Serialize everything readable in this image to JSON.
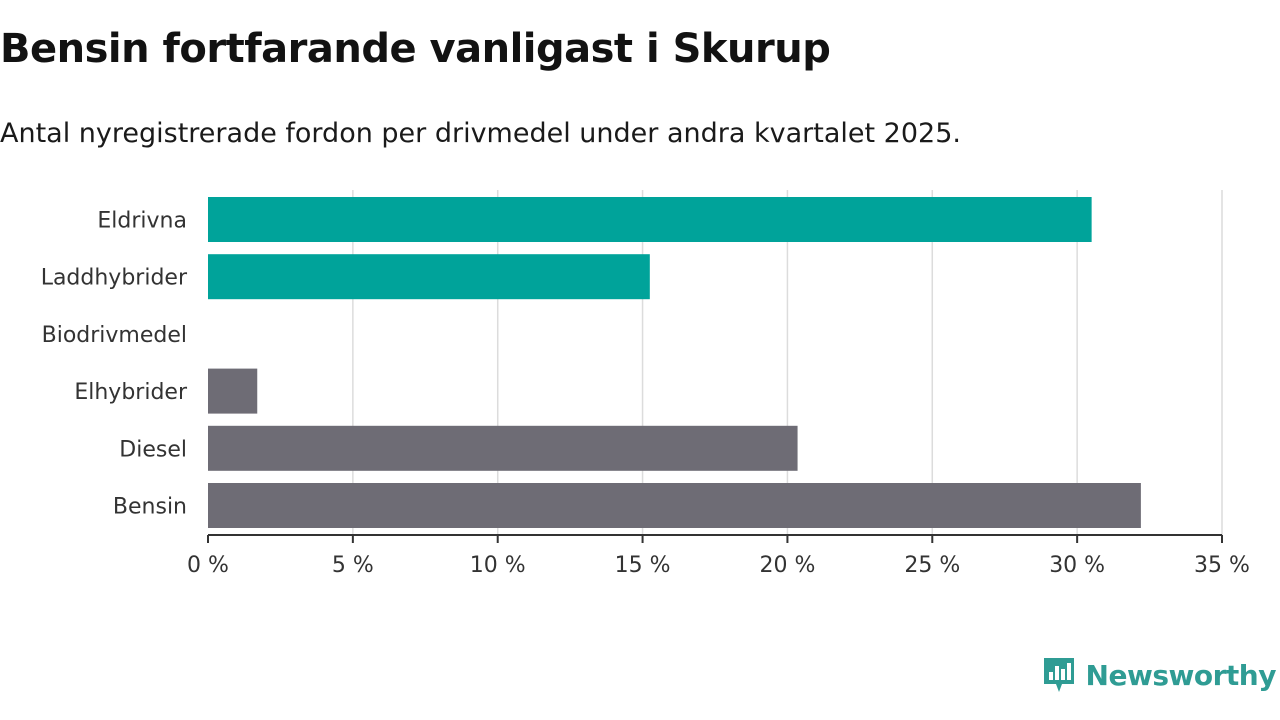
{
  "title": "Bensin fortfarande vanligast i Skurup",
  "subtitle": "Antal nyregistrerade fordon per drivmedel under andra kvartalet 2025.",
  "brand": {
    "name": "Newsworthy",
    "icon": "newsworthy-logo-icon",
    "color": "#2f9c94"
  },
  "chart_data": {
    "type": "bar",
    "orientation": "horizontal",
    "title": "Bensin fortfarande vanligast i Skurup",
    "subtitle": "Antal nyregistrerade fordon per drivmedel under andra kvartalet 2025.",
    "categories": [
      "Eldrivna",
      "Laddhybrider",
      "Biodrivmedel",
      "Elhybrider",
      "Diesel",
      "Bensin"
    ],
    "values": [
      30.5,
      15.25,
      0,
      1.7,
      20.35,
      32.2
    ],
    "colors": [
      "#00a39a",
      "#00a39a",
      "#00a39a",
      "#6e6c75",
      "#6e6c75",
      "#6e6c75"
    ],
    "xlim": [
      0,
      35
    ],
    "xticks": [
      0,
      5,
      10,
      15,
      20,
      25,
      30,
      35
    ],
    "tick_labels": [
      "0 %",
      "5 %",
      "10 %",
      "15 %",
      "20 %",
      "25 %",
      "30 %",
      "35 %"
    ],
    "xlabel": "",
    "ylabel": "",
    "grid": true,
    "legend": "none"
  }
}
